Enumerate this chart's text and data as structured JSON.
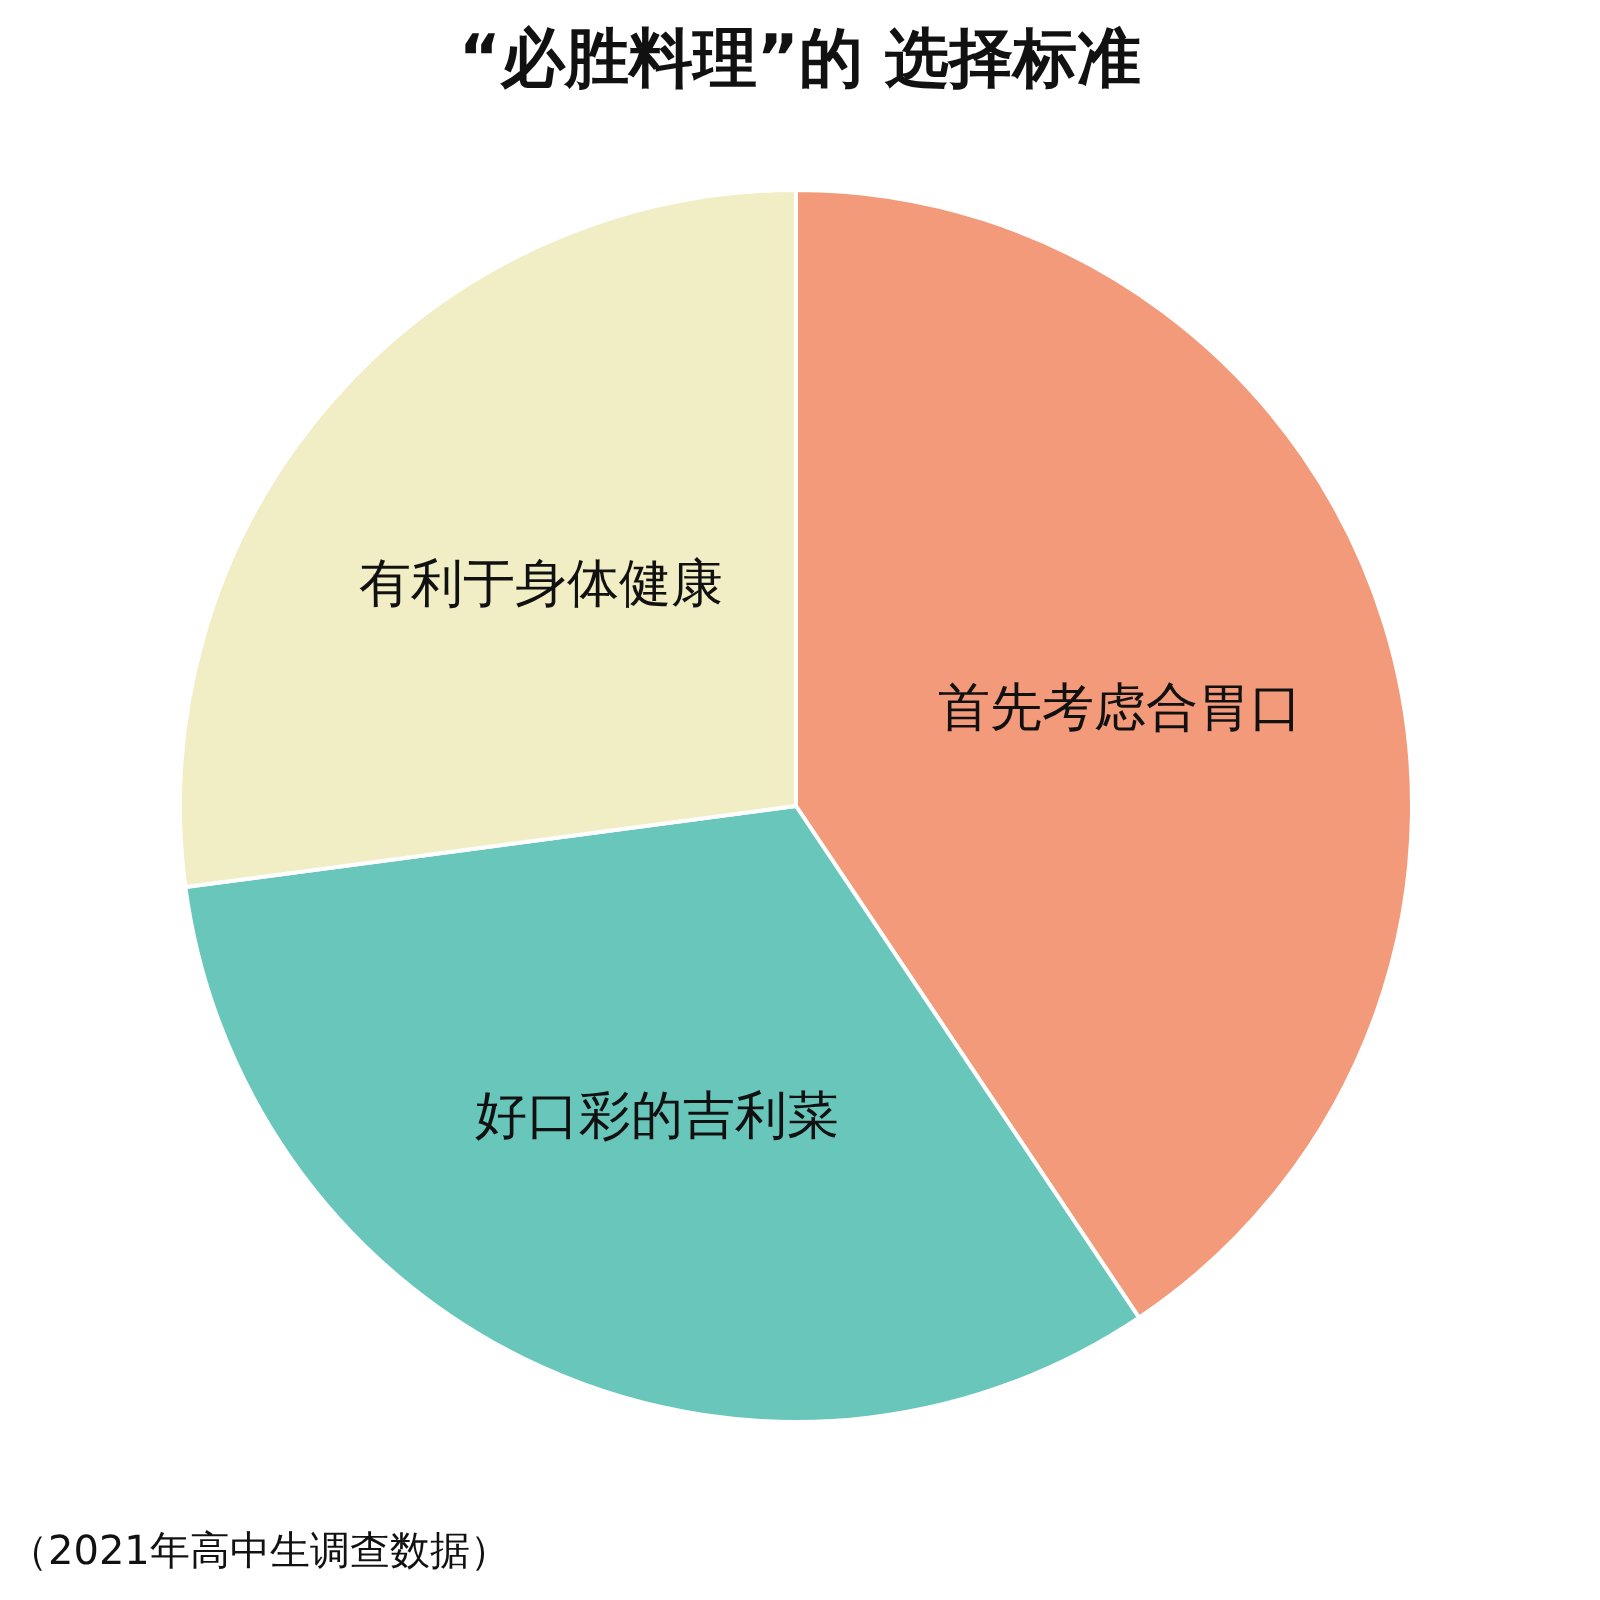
{
  "chart_data": {
    "type": "pie",
    "title": "“必胜料理”的 选择标准",
    "categories": [
      "首先考虑合胃口",
      "好口彩的吉利菜",
      "有利于身体健康"
    ],
    "values": [
      40.6,
      32.3,
      27.1
    ],
    "colors": [
      "#f29a7a",
      "#69c6bb",
      "#f1edc5"
    ],
    "annotations": [
      "（2021年高中生调查数据）"
    ]
  }
}
